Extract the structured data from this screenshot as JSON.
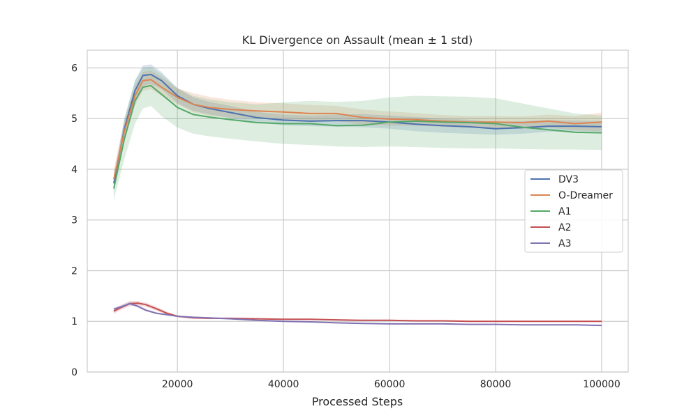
{
  "chart_data": {
    "type": "line",
    "title": "KL Divergence on Assault (mean ± 1 std)",
    "xlabel": "Processed Steps",
    "ylabel": "",
    "xlim": [
      3000,
      105000
    ],
    "ylim": [
      0,
      6.35
    ],
    "x_ticks": [
      20000,
      40000,
      60000,
      80000,
      100000
    ],
    "x_tick_labels": [
      "20000",
      "40000",
      "60000",
      "80000",
      "100000"
    ],
    "y_ticks": [
      0,
      1,
      2,
      3,
      4,
      5,
      6
    ],
    "y_tick_labels": [
      "0",
      "1",
      "2",
      "3",
      "4",
      "5",
      "6"
    ],
    "grid": true,
    "legend_position": "right",
    "series": [
      {
        "name": "DV3",
        "color": "#4c72b0",
        "x": [
          8000,
          10000,
          12000,
          13500,
          15000,
          17000,
          20000,
          23000,
          26000,
          30000,
          35000,
          40000,
          45000,
          50000,
          55000,
          60000,
          65000,
          70000,
          75000,
          80000,
          85000,
          90000,
          95000,
          100000
        ],
        "y": [
          3.72,
          4.8,
          5.55,
          5.85,
          5.87,
          5.75,
          5.45,
          5.28,
          5.2,
          5.12,
          5.02,
          4.97,
          4.95,
          4.96,
          4.96,
          4.93,
          4.89,
          4.86,
          4.84,
          4.8,
          4.82,
          4.85,
          4.85,
          4.84
        ],
        "band_lower": [
          3.55,
          4.6,
          5.35,
          5.65,
          5.68,
          5.58,
          5.3,
          5.15,
          5.08,
          5.0,
          4.92,
          4.87,
          4.85,
          4.84,
          4.83,
          4.8,
          4.75,
          4.72,
          4.7,
          4.68,
          4.7,
          4.74,
          4.75,
          4.74
        ],
        "band_upper": [
          3.9,
          5.0,
          5.75,
          6.05,
          6.07,
          5.92,
          5.6,
          5.42,
          5.33,
          5.25,
          5.13,
          5.08,
          5.06,
          5.08,
          5.09,
          5.06,
          5.03,
          5.0,
          4.98,
          4.93,
          4.95,
          4.97,
          4.96,
          4.95
        ]
      },
      {
        "name": "O-Dreamer",
        "color": "#dd8452",
        "x": [
          8000,
          10000,
          12000,
          13500,
          15000,
          17000,
          20000,
          23000,
          26000,
          30000,
          35000,
          40000,
          45000,
          50000,
          55000,
          60000,
          65000,
          70000,
          75000,
          80000,
          85000,
          90000,
          95000,
          100000
        ],
        "y": [
          3.8,
          4.75,
          5.45,
          5.75,
          5.77,
          5.62,
          5.42,
          5.28,
          5.22,
          5.18,
          5.15,
          5.13,
          5.1,
          5.1,
          5.02,
          4.99,
          4.98,
          4.95,
          4.93,
          4.93,
          4.92,
          4.95,
          4.9,
          4.93
        ],
        "band_lower": [
          3.6,
          4.55,
          5.25,
          5.55,
          5.58,
          5.45,
          5.28,
          5.12,
          5.06,
          5.02,
          5.0,
          4.98,
          4.95,
          4.95,
          4.88,
          4.86,
          4.86,
          4.84,
          4.82,
          4.82,
          4.8,
          4.82,
          4.77,
          4.75
        ],
        "band_upper": [
          4.0,
          4.95,
          5.65,
          5.92,
          5.95,
          5.82,
          5.6,
          5.5,
          5.43,
          5.37,
          5.32,
          5.3,
          5.27,
          5.25,
          5.18,
          5.14,
          5.11,
          5.07,
          5.05,
          5.05,
          5.04,
          5.08,
          5.05,
          5.12
        ]
      },
      {
        "name": "A1",
        "color": "#55a868",
        "x": [
          8000,
          10000,
          12000,
          13500,
          15000,
          17000,
          20000,
          23000,
          26000,
          30000,
          35000,
          40000,
          45000,
          50000,
          55000,
          60000,
          65000,
          70000,
          75000,
          80000,
          85000,
          90000,
          95000,
          100000
        ],
        "y": [
          3.62,
          4.6,
          5.35,
          5.62,
          5.65,
          5.48,
          5.22,
          5.08,
          5.03,
          4.98,
          4.92,
          4.9,
          4.9,
          4.86,
          4.87,
          4.93,
          4.95,
          4.93,
          4.92,
          4.9,
          4.83,
          4.78,
          4.73,
          4.72
        ],
        "band_lower": [
          3.4,
          4.2,
          4.9,
          5.2,
          5.25,
          5.05,
          4.82,
          4.7,
          4.65,
          4.6,
          4.55,
          4.5,
          4.48,
          4.45,
          4.44,
          4.45,
          4.44,
          4.42,
          4.41,
          4.41,
          4.4,
          4.39,
          4.39,
          4.38
        ],
        "band_upper": [
          3.82,
          5.0,
          5.75,
          6.0,
          6.02,
          5.88,
          5.6,
          5.45,
          5.38,
          5.32,
          5.28,
          5.32,
          5.35,
          5.33,
          5.35,
          5.42,
          5.45,
          5.44,
          5.43,
          5.4,
          5.3,
          5.2,
          5.1,
          5.06
        ]
      },
      {
        "name": "A2",
        "color": "#c44e52",
        "x": [
          8000,
          9500,
          11000,
          12500,
          14000,
          16000,
          18000,
          20000,
          23000,
          26000,
          30000,
          35000,
          40000,
          45000,
          50000,
          55000,
          60000,
          65000,
          70000,
          75000,
          80000,
          85000,
          90000,
          95000,
          100000
        ],
        "y": [
          1.2,
          1.28,
          1.35,
          1.36,
          1.33,
          1.25,
          1.16,
          1.1,
          1.07,
          1.06,
          1.06,
          1.05,
          1.04,
          1.04,
          1.03,
          1.02,
          1.02,
          1.01,
          1.01,
          1.0,
          1.0,
          1.0,
          1.0,
          1.0,
          1.0
        ],
        "band_lower": [
          1.15,
          1.23,
          1.3,
          1.32,
          1.29,
          1.21,
          1.13,
          1.08,
          1.05,
          1.05,
          1.05,
          1.04,
          1.03,
          1.03,
          1.02,
          1.01,
          1.01,
          1.0,
          1.0,
          0.99,
          0.99,
          0.99,
          0.99,
          0.99,
          0.99
        ],
        "band_upper": [
          1.25,
          1.33,
          1.4,
          1.4,
          1.37,
          1.29,
          1.19,
          1.12,
          1.09,
          1.07,
          1.07,
          1.06,
          1.05,
          1.05,
          1.04,
          1.03,
          1.03,
          1.02,
          1.02,
          1.01,
          1.01,
          1.01,
          1.01,
          1.01,
          1.01
        ]
      },
      {
        "name": "A3",
        "color": "#8172b3",
        "x": [
          8000,
          9500,
          11000,
          12500,
          14000,
          16000,
          18000,
          20000,
          23000,
          26000,
          30000,
          35000,
          40000,
          45000,
          50000,
          55000,
          60000,
          65000,
          70000,
          75000,
          80000,
          85000,
          90000,
          95000,
          100000
        ],
        "y": [
          1.24,
          1.29,
          1.35,
          1.3,
          1.22,
          1.16,
          1.13,
          1.1,
          1.08,
          1.07,
          1.05,
          1.02,
          1.0,
          0.99,
          0.97,
          0.96,
          0.95,
          0.95,
          0.95,
          0.94,
          0.94,
          0.93,
          0.93,
          0.93,
          0.92
        ],
        "band_lower": [
          1.21,
          1.26,
          1.32,
          1.27,
          1.2,
          1.14,
          1.12,
          1.09,
          1.07,
          1.06,
          1.04,
          1.01,
          0.99,
          0.98,
          0.96,
          0.95,
          0.94,
          0.94,
          0.94,
          0.93,
          0.93,
          0.92,
          0.92,
          0.92,
          0.91
        ],
        "band_upper": [
          1.27,
          1.32,
          1.38,
          1.33,
          1.25,
          1.18,
          1.14,
          1.11,
          1.09,
          1.08,
          1.06,
          1.03,
          1.01,
          1.0,
          0.98,
          0.97,
          0.96,
          0.96,
          0.96,
          0.95,
          0.95,
          0.94,
          0.94,
          0.94,
          0.93
        ]
      }
    ]
  }
}
